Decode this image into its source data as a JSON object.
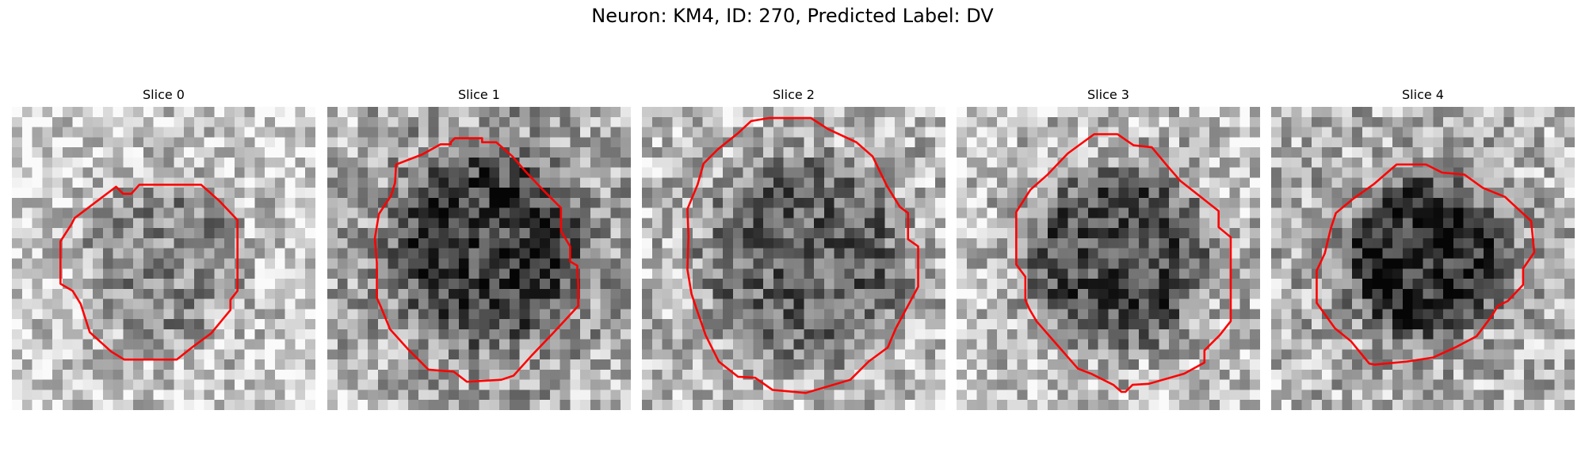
{
  "figure": {
    "title": "Neuron: KM4, ID: 270, Predicted Label: DV"
  },
  "colors": {
    "contour": "#ff0000"
  },
  "slices": [
    {
      "label": "Slice 0",
      "profile": [
        0.55,
        0.75,
        0.85
      ]
    },
    {
      "label": "Slice 1",
      "profile": [
        0.25,
        0.6,
        0.75
      ]
    },
    {
      "label": "Slice 2",
      "profile": [
        0.4,
        0.7,
        0.78
      ]
    },
    {
      "label": "Slice 3",
      "profile": [
        0.3,
        0.7,
        0.8
      ]
    },
    {
      "label": "Slice 4",
      "profile": [
        0.18,
        0.65,
        0.72
      ]
    }
  ]
}
